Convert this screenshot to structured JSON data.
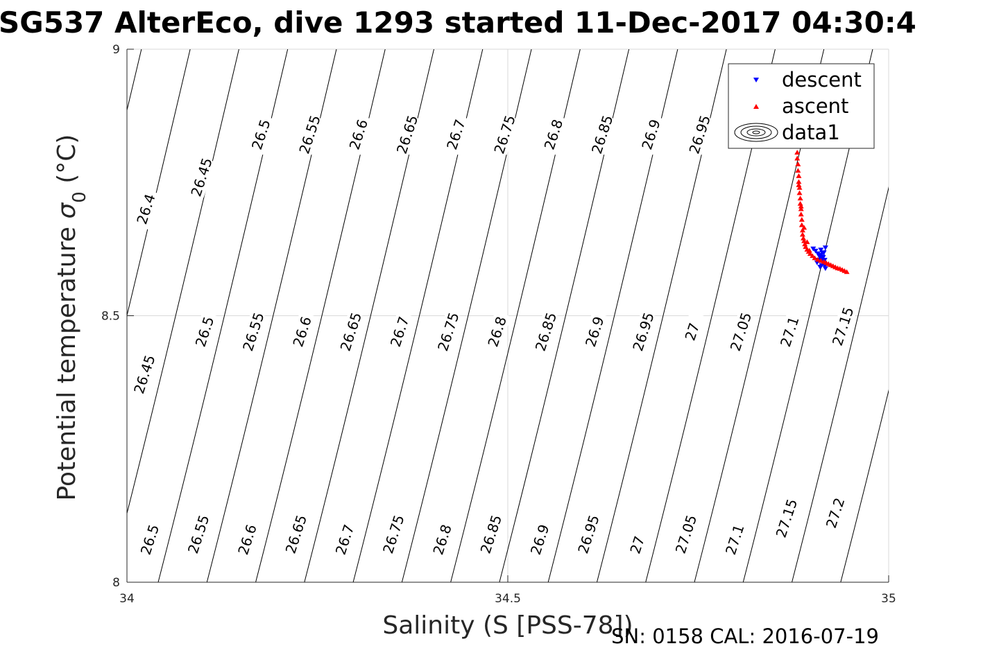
{
  "chart_data": {
    "type": "scatter",
    "title": "SG537 AlterEco, dive 1293 started 11-Dec-2017 04:30:4",
    "xlabel": "Salinity (S [PSS-78])",
    "ylabel_main": "Potential temperature ",
    "ylabel_sigma": "σ",
    "ylabel_sub": "0",
    "ylabel_unit": " (°C)",
    "footer": "SN: 0158  CAL: 2016-07-19",
    "xlim": [
      34,
      35
    ],
    "ylim": [
      8,
      9
    ],
    "xticks": [
      34,
      34.5,
      35
    ],
    "yticks": [
      8,
      8.5,
      9
    ],
    "xtick_labels": [
      "34",
      "34.5",
      "35"
    ],
    "ytick_labels": [
      "8",
      "8.5",
      "9"
    ],
    "grid": true,
    "legend": {
      "placement": "top-right",
      "entries": [
        {
          "name": "descent",
          "color": "#0000ff",
          "marker": "triangle-down"
        },
        {
          "name": "ascent",
          "color": "#ff0000",
          "marker": "triangle-up"
        },
        {
          "name": "data1",
          "color": "#000000",
          "marker": "contour"
        }
      ]
    },
    "contours": {
      "levels": [
        "26.4",
        "26.45",
        "26.5",
        "26.55",
        "26.6",
        "26.65",
        "26.7",
        "26.75",
        "26.8",
        "26.85",
        "26.9",
        "26.95",
        "27",
        "27.05",
        "27.1",
        "27.15",
        "27.2"
      ],
      "isolines": [
        {
          "s_bottom": 33.848,
          "s_top": 34.019
        },
        {
          "s_bottom": 33.913,
          "s_top": 34.083
        },
        {
          "s_bottom": 33.977,
          "s_top": 34.147
        },
        {
          "s_bottom": 34.041,
          "s_top": 34.211
        },
        {
          "s_bottom": 34.105,
          "s_top": 34.275
        },
        {
          "s_bottom": 34.169,
          "s_top": 34.339
        },
        {
          "s_bottom": 34.233,
          "s_top": 34.403
        },
        {
          "s_bottom": 34.297,
          "s_top": 34.467
        },
        {
          "s_bottom": 34.361,
          "s_top": 34.531
        },
        {
          "s_bottom": 34.425,
          "s_top": 34.595
        },
        {
          "s_bottom": 34.489,
          "s_top": 34.659
        },
        {
          "s_bottom": 34.553,
          "s_top": 34.723
        },
        {
          "s_bottom": 34.617,
          "s_top": 34.787
        },
        {
          "s_bottom": 34.681,
          "s_top": 34.851
        },
        {
          "s_bottom": 34.745,
          "s_top": 34.915
        },
        {
          "s_bottom": 34.809,
          "s_top": 34.979
        },
        {
          "s_bottom": 34.873,
          "s_top": 35.043
        },
        {
          "s_bottom": 34.937,
          "s_top": 35.107
        },
        {
          "s_bottom": 35.001,
          "s_top": 35.171
        }
      ],
      "labels": [
        {
          "text": "26.4",
          "s": 34.025,
          "t": 8.7
        },
        {
          "text": "26.45",
          "s": 34.098,
          "t": 8.76
        },
        {
          "text": "26.5",
          "s": 34.176,
          "t": 8.84
        },
        {
          "text": "26.55",
          "s": 34.24,
          "t": 8.84
        },
        {
          "text": "26.6",
          "s": 34.304,
          "t": 8.84
        },
        {
          "text": "26.65",
          "s": 34.368,
          "t": 8.84
        },
        {
          "text": "26.7",
          "s": 34.432,
          "t": 8.84
        },
        {
          "text": "26.75",
          "s": 34.496,
          "t": 8.84
        },
        {
          "text": "26.8",
          "s": 34.56,
          "t": 8.84
        },
        {
          "text": "26.85",
          "s": 34.624,
          "t": 8.84
        },
        {
          "text": "26.9",
          "s": 34.688,
          "t": 8.84
        },
        {
          "text": "26.95",
          "s": 34.752,
          "t": 8.84
        },
        {
          "text": "26.45",
          "s": 34.023,
          "t": 8.39
        },
        {
          "text": "26.5",
          "s": 34.102,
          "t": 8.47
        },
        {
          "text": "26.55",
          "s": 34.166,
          "t": 8.47
        },
        {
          "text": "26.6",
          "s": 34.23,
          "t": 8.47
        },
        {
          "text": "26.65",
          "s": 34.294,
          "t": 8.47
        },
        {
          "text": "26.7",
          "s": 34.358,
          "t": 8.47
        },
        {
          "text": "26.75",
          "s": 34.422,
          "t": 8.47
        },
        {
          "text": "26.8",
          "s": 34.486,
          "t": 8.47
        },
        {
          "text": "26.85",
          "s": 34.55,
          "t": 8.47
        },
        {
          "text": "26.9",
          "s": 34.614,
          "t": 8.47
        },
        {
          "text": "26.95",
          "s": 34.678,
          "t": 8.47
        },
        {
          "text": "27",
          "s": 34.742,
          "t": 8.47
        },
        {
          "text": "27.05",
          "s": 34.806,
          "t": 8.47
        },
        {
          "text": "27.1",
          "s": 34.87,
          "t": 8.47
        },
        {
          "text": "27.15",
          "s": 34.94,
          "t": 8.48
        },
        {
          "text": "26.5",
          "s": 34.03,
          "t": 8.08
        },
        {
          "text": "26.55",
          "s": 34.094,
          "t": 8.09
        },
        {
          "text": "26.6",
          "s": 34.158,
          "t": 8.08
        },
        {
          "text": "26.65",
          "s": 34.222,
          "t": 8.09
        },
        {
          "text": "26.7",
          "s": 34.286,
          "t": 8.08
        },
        {
          "text": "26.75",
          "s": 34.35,
          "t": 8.09
        },
        {
          "text": "26.8",
          "s": 34.414,
          "t": 8.08
        },
        {
          "text": "26.85",
          "s": 34.478,
          "t": 8.09
        },
        {
          "text": "26.9",
          "s": 34.542,
          "t": 8.08
        },
        {
          "text": "26.95",
          "s": 34.606,
          "t": 8.09
        },
        {
          "text": "27",
          "s": 34.67,
          "t": 8.07
        },
        {
          "text": "27.05",
          "s": 34.734,
          "t": 8.09
        },
        {
          "text": "27.1",
          "s": 34.798,
          "t": 8.08
        },
        {
          "text": "27.15",
          "s": 34.866,
          "t": 8.12
        },
        {
          "text": "27.2",
          "s": 34.93,
          "t": 8.13
        }
      ]
    },
    "series": [
      {
        "name": "descent",
        "color": "#0000ff",
        "x": [
          34.901,
          34.904,
          34.907,
          34.909,
          34.911,
          34.912,
          34.914,
          34.915,
          34.916,
          34.917,
          34.912,
          34.908,
          34.913,
          34.909,
          34.915,
          34.911,
          34.917,
          34.914,
          34.906,
          34.91,
          34.916,
          34.913
        ],
        "y": [
          8.626,
          8.622,
          8.617,
          8.612,
          8.608,
          8.604,
          8.601,
          8.597,
          8.594,
          8.589,
          8.595,
          8.605,
          8.611,
          8.614,
          8.619,
          8.624,
          8.628,
          8.61,
          8.6,
          8.592,
          8.605,
          8.618
        ]
      },
      {
        "name": "ascent",
        "color": "#ff0000",
        "x": [
          34.879,
          34.88,
          34.88,
          34.881,
          34.881,
          34.882,
          34.882,
          34.883,
          34.883,
          34.884,
          34.884,
          34.885,
          34.885,
          34.886,
          34.886,
          34.887,
          34.887,
          34.888,
          34.889,
          34.89,
          34.891,
          34.893,
          34.895,
          34.897,
          34.9,
          34.903,
          34.907,
          34.911,
          34.915,
          34.918,
          34.921,
          34.924,
          34.927,
          34.93,
          34.933,
          34.936,
          34.939,
          34.942,
          34.945,
          34.882,
          34.885,
          34.889,
          34.893,
          34.896
        ],
        "y": [
          8.817,
          8.806,
          8.795,
          8.784,
          8.772,
          8.762,
          8.751,
          8.74,
          8.73,
          8.72,
          8.71,
          8.7,
          8.69,
          8.68,
          8.67,
          8.66,
          8.652,
          8.645,
          8.64,
          8.634,
          8.629,
          8.624,
          8.62,
          8.616,
          8.612,
          8.608,
          8.605,
          8.603,
          8.601,
          8.599,
          8.597,
          8.595,
          8.593,
          8.591,
          8.589,
          8.588,
          8.586,
          8.584,
          8.582,
          8.745,
          8.705,
          8.665,
          8.638,
          8.622
        ]
      }
    ]
  },
  "colors": {
    "axis": "#262626",
    "grid": "#d9d9d9",
    "contour": "#000000",
    "descent": "#0000ff",
    "ascent": "#ff0000"
  }
}
